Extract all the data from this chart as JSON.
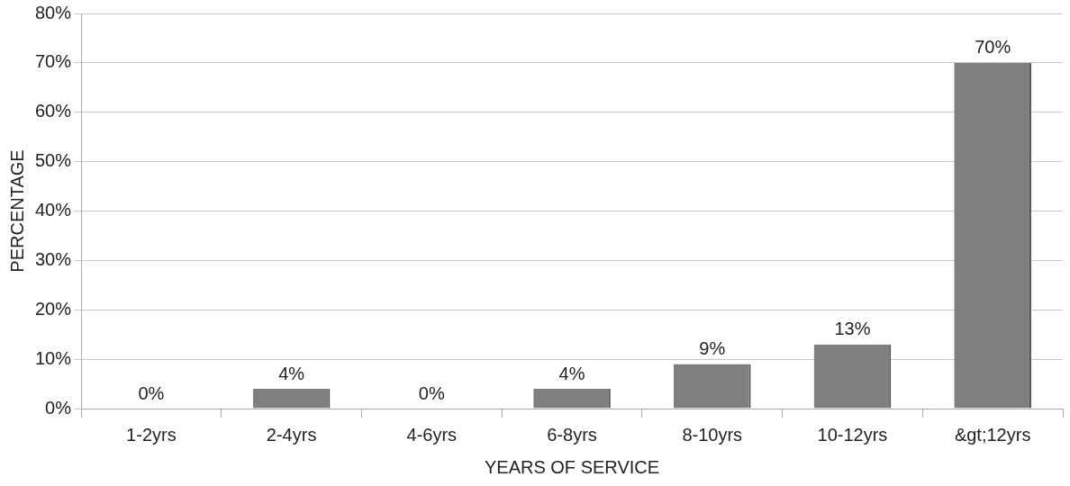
{
  "chart_data": {
    "type": "bar",
    "xlabel": "YEARS OF SERVICE",
    "ylabel": "PERCENTAGE",
    "categories": [
      "1-2yrs",
      "2-4yrs",
      "4-6yrs",
      "6-8yrs",
      "8-10yrs",
      "10-12yrs",
      "&gt;12yrs"
    ],
    "values": [
      0,
      4,
      0,
      4,
      9,
      13,
      70
    ],
    "value_labels": [
      "0%",
      "4%",
      "0%",
      "4%",
      "9%",
      "13%",
      "70%"
    ],
    "color": "#7f7f7f",
    "ylim": [
      0,
      80
    ],
    "yticks": [
      {
        "value": 0,
        "label": "0%"
      },
      {
        "value": 10,
        "label": "10%"
      },
      {
        "value": 20,
        "label": "20%"
      },
      {
        "value": 30,
        "label": "30%"
      },
      {
        "value": 40,
        "label": "40%"
      },
      {
        "value": 50,
        "label": "50%"
      },
      {
        "value": 60,
        "label": "60%"
      },
      {
        "value": 70,
        "label": "70%"
      },
      {
        "value": 80,
        "label": "80%"
      }
    ],
    "grid": "y",
    "legend": false
  }
}
